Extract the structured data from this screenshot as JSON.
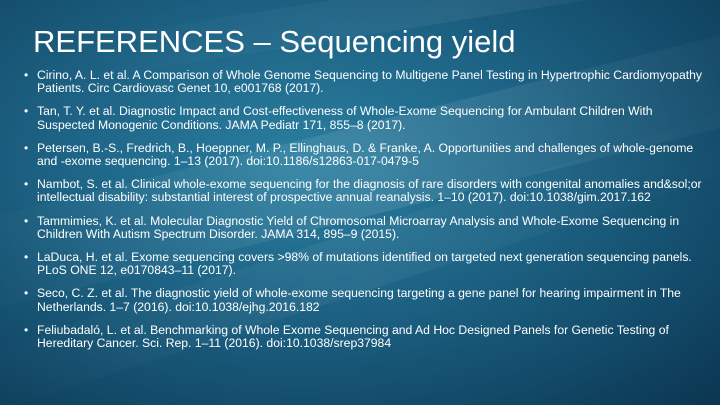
{
  "slide": {
    "title": "REFERENCES – Sequencing yield",
    "bullet_symbol": "•",
    "references": [
      "Cirino, A. L. et al. A Comparison of Whole Genome Sequencing to Multigene Panel Testing in Hypertrophic Cardiomyopathy Patients. Circ Cardiovasc Genet 10, e001768 (2017).",
      "Tan, T. Y. et al. Diagnostic Impact and Cost-effectiveness of Whole-Exome Sequencing for Ambulant Children With Suspected Monogenic Conditions. JAMA Pediatr 171, 855–8 (2017).",
      "Petersen, B.-S., Fredrich, B., Hoeppner, M. P., Ellinghaus, D. & Franke, A. Opportunities and challenges of whole-genome and -exome sequencing. 1–13 (2017). doi:10.1186/s12863-017-0479-5",
      "Nambot, S. et al. Clinical whole-exome sequencing for the diagnosis of rare disorders with congenital anomalies and&sol;or intellectual disability: substantial interest of prospective annual reanalysis. 1–10 (2017). doi:10.1038/gim.2017.162",
      "Tammimies, K. et al. Molecular Diagnostic Yield of Chromosomal Microarray Analysis and Whole-Exome Sequencing in Children With Autism Spectrum Disorder. JAMA 314, 895–9 (2015).",
      "LaDuca, H. et al. Exome sequencing covers >98% of mutations identified on targeted next generation sequencing panels. PLoS ONE 12, e0170843–11 (2017).",
      "Seco, C. Z. et al. The diagnostic yield of whole-exome sequencing targeting a gene panel for hearing impairment in The Netherlands. 1–7 (2016). doi:10.1038/ejhg.2016.182",
      "Feliubadaló, L. et al. Benchmarking of Whole Exome Sequencing and Ad Hoc Designed Panels for Genetic Testing of Hereditary Cancer. Sci. Rep. 1–11 (2016). doi:10.1038/srep37984"
    ]
  }
}
